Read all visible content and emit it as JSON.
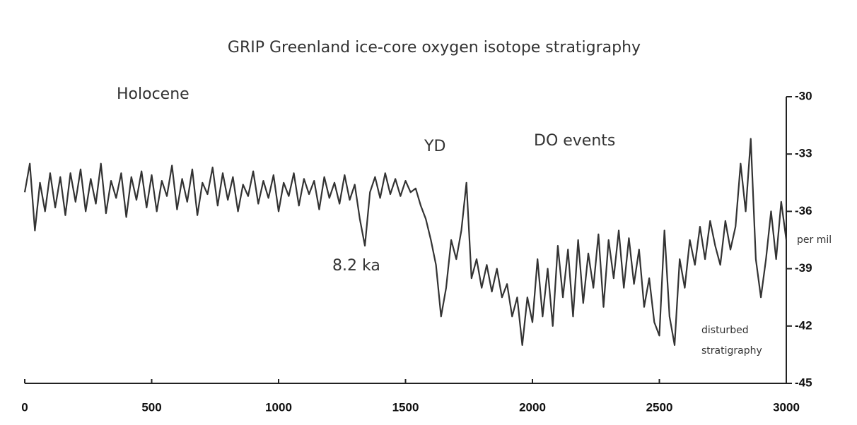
{
  "chart_data": {
    "type": "line",
    "title": "GRIP Greenland ice-core oxygen isotope stratigraphy",
    "y_label": "per mil",
    "annotations": [
      "Holocene",
      "YD",
      "DO events",
      "8.2 ka",
      "disturbed",
      "stratigraphy"
    ],
    "xlim": [
      0,
      3000
    ],
    "xticks": [
      0,
      500,
      1000,
      1500,
      2000,
      2500,
      3000
    ],
    "ylim": [
      -45,
      -30
    ],
    "yticks": [
      -30,
      -33,
      -36,
      -39,
      -42,
      -45
    ],
    "series": [
      {
        "name": "GRIP",
        "color": "#333333",
        "x": [
          0,
          20,
          40,
          60,
          80,
          100,
          120,
          140,
          160,
          180,
          200,
          220,
          240,
          260,
          280,
          300,
          320,
          340,
          360,
          380,
          400,
          420,
          440,
          460,
          480,
          500,
          520,
          540,
          560,
          580,
          600,
          620,
          640,
          660,
          680,
          700,
          720,
          740,
          760,
          780,
          800,
          820,
          840,
          860,
          880,
          900,
          920,
          940,
          960,
          980,
          1000,
          1020,
          1040,
          1060,
          1080,
          1100,
          1120,
          1140,
          1160,
          1180,
          1200,
          1220,
          1240,
          1260,
          1280,
          1300,
          1320,
          1340,
          1360,
          1380,
          1400,
          1420,
          1440,
          1460,
          1480,
          1500,
          1520,
          1540,
          1560,
          1580,
          1600,
          1620,
          1640,
          1660,
          1680,
          1700,
          1720,
          1740,
          1760,
          1780,
          1800,
          1820,
          1840,
          1860,
          1880,
          1900,
          1920,
          1940,
          1960,
          1980,
          2000,
          2020,
          2040,
          2060,
          2080,
          2100,
          2120,
          2140,
          2160,
          2180,
          2200,
          2220,
          2240,
          2260,
          2280,
          2300,
          2320,
          2340,
          2360,
          2380,
          2400,
          2420,
          2440,
          2460,
          2480,
          2500,
          2520,
          2540,
          2560,
          2580,
          2600,
          2620,
          2640,
          2660,
          2680,
          2700,
          2720,
          2740,
          2760,
          2780,
          2800,
          2820,
          2840,
          2860,
          2880,
          2900,
          2920,
          2940,
          2960,
          2980,
          3000
        ],
        "values": [
          -35,
          -33.5,
          -37,
          -34.5,
          -36,
          -34,
          -35.8,
          -34.2,
          -36.2,
          -34,
          -35.5,
          -33.8,
          -36,
          -34.3,
          -35.6,
          -33.5,
          -36.1,
          -34.4,
          -35.3,
          -34,
          -36.3,
          -34.2,
          -35.4,
          -33.9,
          -35.8,
          -34.1,
          -36,
          -34.4,
          -35.2,
          -33.6,
          -35.9,
          -34.3,
          -35.5,
          -33.8,
          -36.2,
          -34.5,
          -35.1,
          -33.7,
          -35.7,
          -34,
          -35.4,
          -34.2,
          -36,
          -34.6,
          -35.2,
          -33.9,
          -35.6,
          -34.4,
          -35.3,
          -34.1,
          -36,
          -34.5,
          -35.2,
          -34,
          -35.7,
          -34.3,
          -35.1,
          -34.4,
          -35.9,
          -34.2,
          -35.3,
          -34.5,
          -35.6,
          -34.1,
          -35.4,
          -34.6,
          -36.4,
          -37.8,
          -35,
          -34.2,
          -35.3,
          -34,
          -35.1,
          -34.3,
          -35.2,
          -34.4,
          -35,
          -34.8,
          -35.7,
          -36.4,
          -37.5,
          -38.8,
          -41.5,
          -40,
          -37.5,
          -38.5,
          -37,
          -34.5,
          -39.5,
          -38.5,
          -40,
          -38.8,
          -40.2,
          -39,
          -40.5,
          -39.8,
          -41.5,
          -40.5,
          -43,
          -40.5,
          -41.8,
          -38.5,
          -41.5,
          -39,
          -42,
          -37.8,
          -40.5,
          -38,
          -41.5,
          -37.5,
          -40.8,
          -38.2,
          -40,
          -37.2,
          -41,
          -37.5,
          -39.5,
          -37,
          -40,
          -37.4,
          -39.8,
          -38,
          -41,
          -39.5,
          -41.8,
          -42.5,
          -37,
          -41.5,
          -43,
          -38.5,
          -40,
          -37.5,
          -38.8,
          -36.8,
          -38.5,
          -36.5,
          -37.8,
          -38.8,
          -36.5,
          -38,
          -36.8,
          -33.5,
          -36,
          -32.2,
          -38.5,
          -40.5,
          -38.5,
          -36,
          -38.5,
          -35.5,
          -37.5
        ]
      }
    ]
  }
}
